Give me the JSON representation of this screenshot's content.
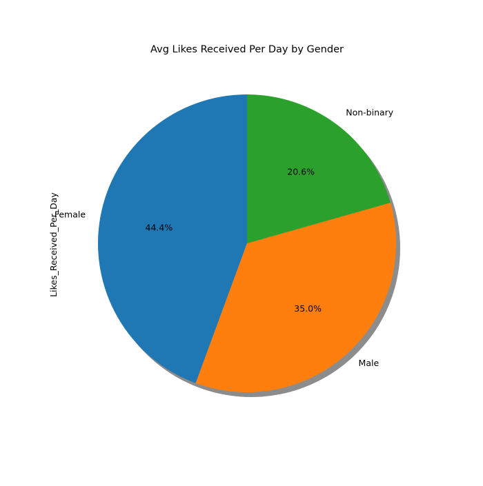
{
  "chart_data": {
    "type": "pie",
    "title": "Avg Likes Received Per Day by Gender",
    "ylabel": "Likes_Received_Per_Day",
    "start_angle_deg": 90,
    "counterclockwise": true,
    "shadow": true,
    "slices": [
      {
        "label": "Female",
        "percent": 44.4,
        "pct_label": "44.4%",
        "color": "#1f77b4"
      },
      {
        "label": "Male",
        "percent": 35.0,
        "pct_label": "35.0%",
        "color": "#ff7f0e"
      },
      {
        "label": "Non-binary",
        "percent": 20.6,
        "pct_label": "20.6%",
        "color": "#2ca02c"
      }
    ]
  }
}
